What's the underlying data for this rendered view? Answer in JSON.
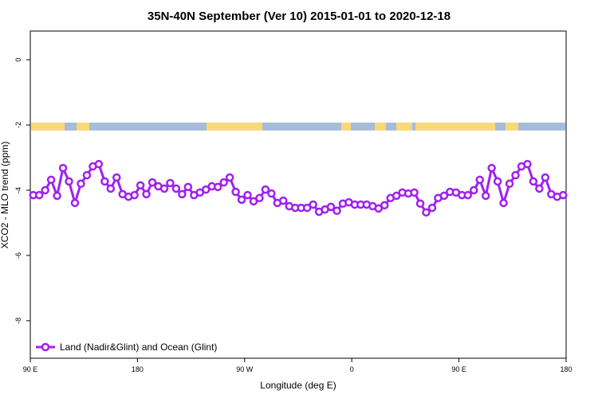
{
  "chart_data": {
    "type": "line",
    "title": "35N-40N September (Ver 10)   2015-01-01 to 2020-12-18",
    "xlabel": "Longitude (deg E)",
    "ylabel": "XCO2 - MLO trend (ppm)",
    "xlim": [
      -270,
      180
    ],
    "ylim": [
      -9.15,
      0.88
    ],
    "xticks": [
      {
        "value": -270,
        "label": "90 E"
      },
      {
        "value": -180,
        "label": "180"
      },
      {
        "value": -90,
        "label": "90 W"
      },
      0,
      {
        "value": 90,
        "label": "90 E"
      },
      {
        "value": 180,
        "label": "180"
      }
    ],
    "yticks": [
      0,
      -2,
      -4,
      -6,
      -8
    ],
    "legend": "bottom-left",
    "x": [
      -267.5,
      -262.5,
      -257.5,
      -252.5,
      -247.5,
      -242.5,
      -237.5,
      -232.5,
      -227.5,
      -222.5,
      -217.5,
      -212.5,
      -207.5,
      -202.5,
      -197.5,
      -192.5,
      -187.5,
      -182.5,
      -177.5,
      -172.5,
      -167.5,
      -162.5,
      -157.5,
      -152.5,
      -147.5,
      -142.5,
      -137.5,
      -132.5,
      -127.5,
      -122.5,
      -117.5,
      -112.5,
      -107.5,
      -102.5,
      -97.5,
      -92.5,
      -87.5,
      -82.5,
      -77.5,
      -72.5,
      -67.5,
      -62.5,
      -57.5,
      -52.5,
      -47.5,
      -42.5,
      -37.5,
      -32.5,
      -27.5,
      -22.5,
      -17.5,
      -12.5,
      -7.5,
      -2.5,
      2.5,
      7.5,
      12.5,
      17.5,
      22.5,
      27.5,
      32.5,
      37.5,
      42.5,
      47.5,
      52.5,
      57.5,
      62.5,
      67.5,
      72.5,
      77.5,
      82.5,
      87.5,
      92.5,
      97.5,
      102.5,
      107.5,
      112.5,
      117.5,
      122.5,
      127.5,
      132.5,
      137.5,
      142.5,
      147.5,
      152.5,
      157.5,
      162.5,
      167.5,
      172.5,
      177.5
    ],
    "series": [
      {
        "name": "Land (Nadir&Glint) and Ocean (Glint)",
        "color": "#a020f0",
        "values": [
          -4.15,
          -4.15,
          -4.0,
          -3.68,
          -4.17,
          -3.32,
          -3.73,
          -4.39,
          -3.8,
          -3.54,
          -3.27,
          -3.2,
          -3.73,
          -3.95,
          -3.61,
          -4.12,
          -4.2,
          -4.15,
          -3.85,
          -4.12,
          -3.76,
          -3.88,
          -3.95,
          -3.78,
          -3.95,
          -4.12,
          -3.9,
          -4.15,
          -4.07,
          -3.98,
          -3.88,
          -3.9,
          -3.76,
          -3.61,
          -4.05,
          -4.29,
          -4.15,
          -4.34,
          -4.24,
          -3.98,
          -4.1,
          -4.39,
          -4.32,
          -4.49,
          -4.54,
          -4.54,
          -4.54,
          -4.44,
          -4.66,
          -4.59,
          -4.51,
          -4.63,
          -4.41,
          -4.37,
          -4.44,
          -4.44,
          -4.44,
          -4.49,
          -4.56,
          -4.46,
          -4.24,
          -4.17,
          -4.07,
          -4.1,
          -4.07,
          -4.41,
          -4.68,
          -4.54,
          -4.24,
          -4.17,
          -4.05,
          -4.07,
          -4.15,
          -4.15,
          -4.0,
          -3.68,
          -4.17,
          -3.32,
          -3.73,
          -4.39,
          -3.8,
          -3.54,
          -3.27,
          -3.2,
          -3.73,
          -3.95,
          -3.61,
          -4.12,
          -4.2,
          -4.15
        ]
      }
    ]
  }
}
